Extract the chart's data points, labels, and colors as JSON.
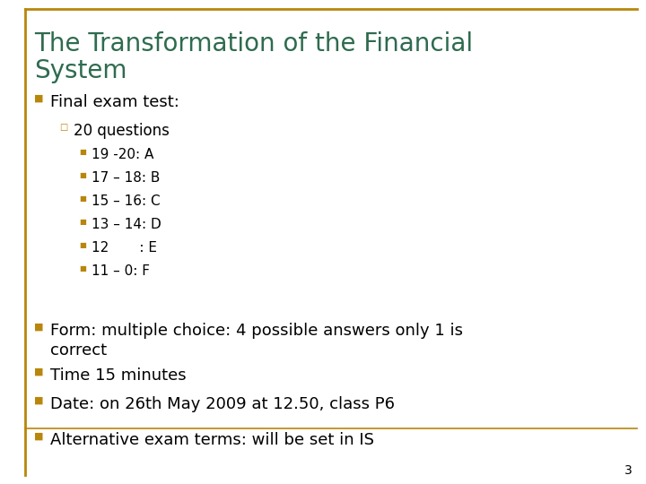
{
  "title_line1": "The Transformation of the Financial",
  "title_line2": "System",
  "title_color": "#2E6B4F",
  "background_color": "#FFFFFF",
  "border_color": "#B8860B",
  "bullet_color": "#B8860B",
  "text_color": "#000000",
  "page_number": "3",
  "bullet1": "Final exam test:",
  "sub_bullet1": "20 questions",
  "sub_sub_bullets": [
    "19 -20: A",
    "17 – 18: B",
    "15 – 16: C",
    "13 – 14: D",
    "12       : E",
    "11 – 0: F"
  ],
  "bullet2_line1": "Form: multiple choice: 4 possible answers only 1 is",
  "bullet2_line2": "correct",
  "bullet3": "Time 15 minutes",
  "bullet4": "Date: on 26th May 2009 at 12.50, class P6",
  "bullet5": "Alternative exam terms: will be set in IS",
  "font_family": "DejaVu Sans",
  "title_fontsize": 20,
  "bullet_fontsize": 13,
  "sub_bullet_fontsize": 12,
  "sub_sub_fontsize": 11
}
